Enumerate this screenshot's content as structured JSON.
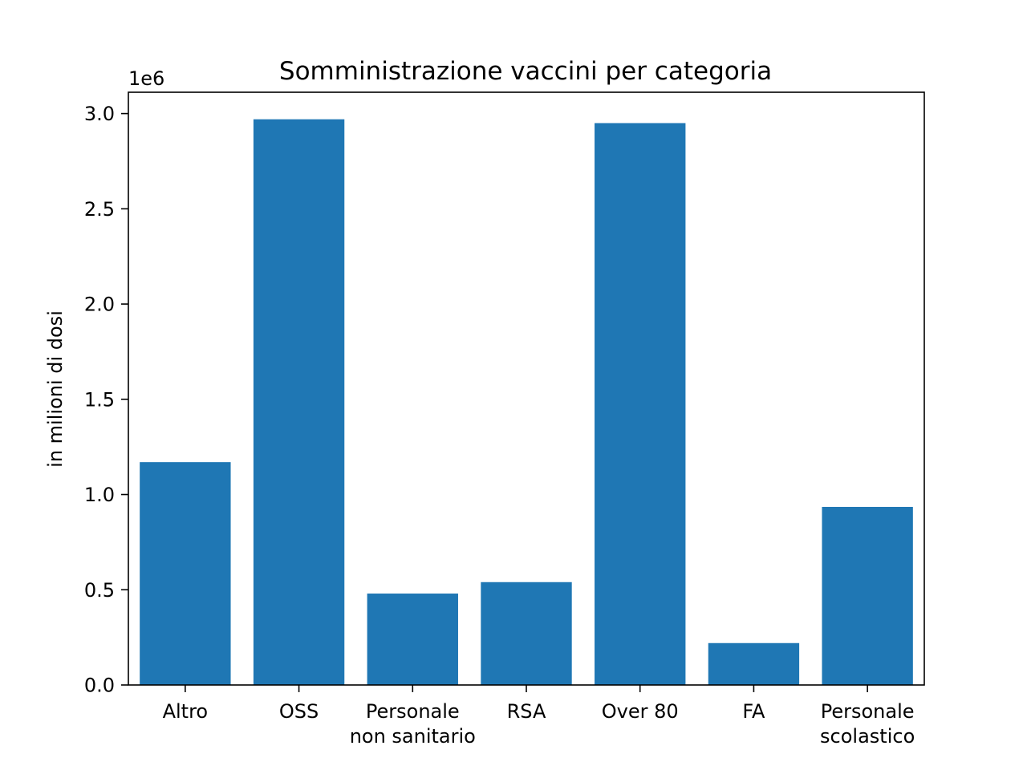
{
  "chart_data": {
    "type": "bar",
    "title": "Somministrazione vaccini per categoria",
    "xlabel": "",
    "ylabel": "in milioni di dosi",
    "y_offset_label": "1e6",
    "categories": [
      [
        "Altro"
      ],
      [
        "OSS"
      ],
      [
        "Personale",
        "non sanitario"
      ],
      [
        "RSA"
      ],
      [
        "Over 80"
      ],
      [
        "FA"
      ],
      [
        "Personale",
        "scolastico"
      ]
    ],
    "values": [
      1170000,
      2970000,
      480000,
      540000,
      2950000,
      220000,
      935000
    ],
    "ylim": [
      0,
      3112000
    ],
    "yticks": [
      0.0,
      0.5,
      1.0,
      1.5,
      2.0,
      2.5,
      3.0
    ],
    "ytick_labels": [
      "0.0",
      "0.5",
      "1.0",
      "1.5",
      "2.0",
      "2.5",
      "3.0"
    ],
    "ytick_scale": 1000000,
    "bar_color": "#1f77b4",
    "grid": false,
    "legend": "none"
  }
}
